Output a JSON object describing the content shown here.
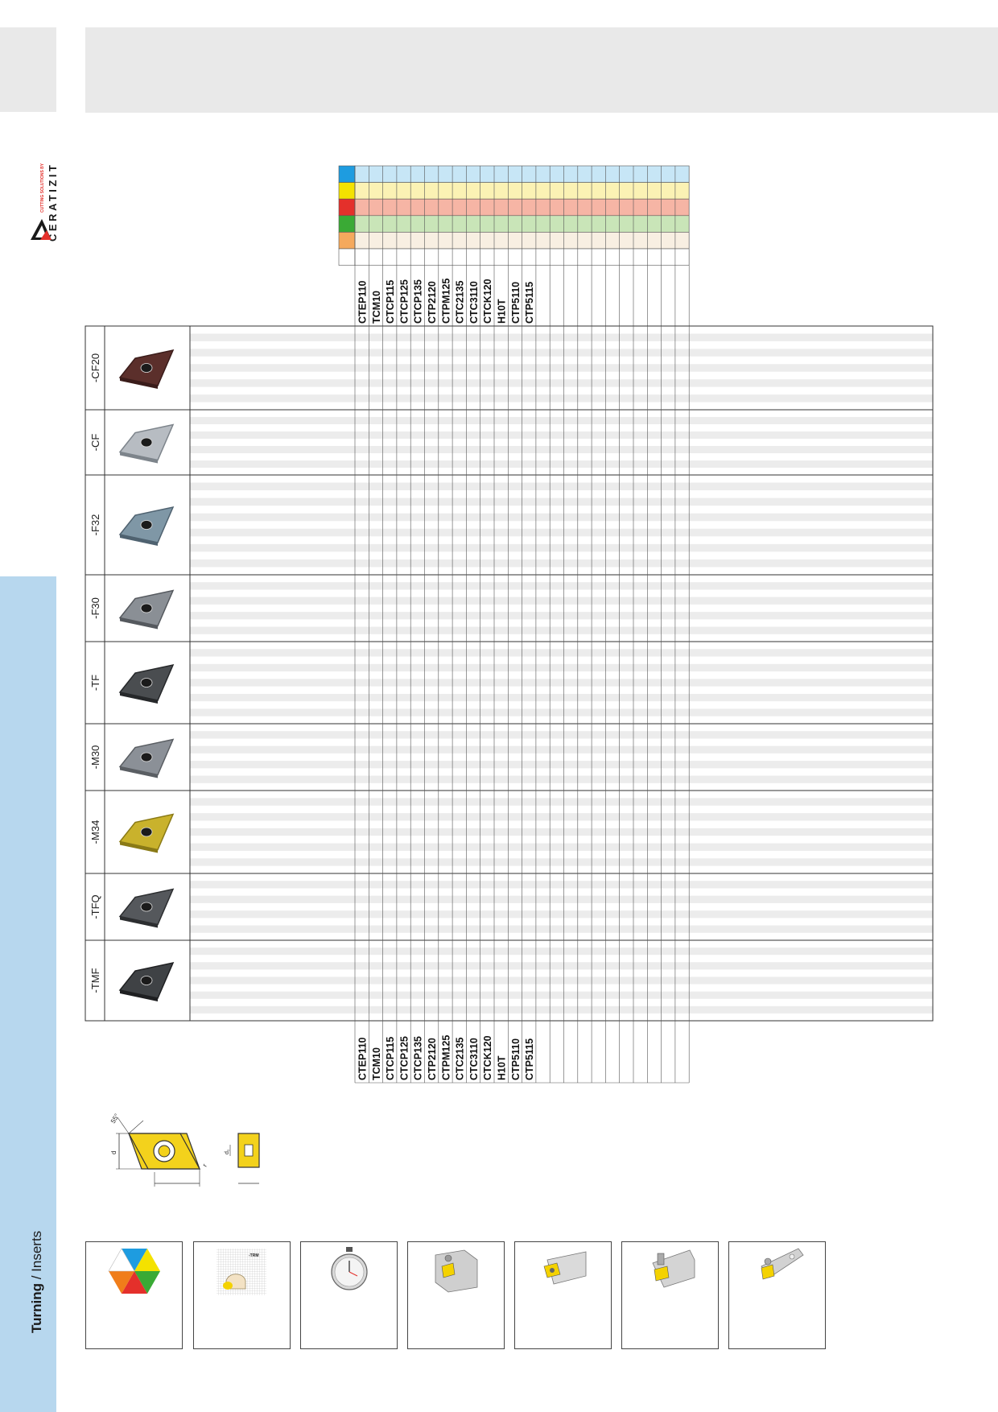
{
  "sidebar": {
    "section_bold": "Turning",
    "section_rest": " / Inserts"
  },
  "logo": {
    "brand": "CERATIZIT",
    "tagline": "CUTTING SOLUTIONS BY"
  },
  "colors": {
    "P": "#1e9ce0",
    "M": "#f4e200",
    "K": "#e4302b",
    "N": "#3aaa35",
    "S": "#f5a95d",
    "H": "#ffffff",
    "tint_P": "#c7e6f6",
    "tint_M": "#fbf2b4",
    "tint_K": "#f6b5a5",
    "tint_N": "#c9e5b8",
    "tint_S": "#f8efe2",
    "sidebar_blue": "#b7d7ee",
    "header_gray": "#e9e9e9",
    "stripe_gray": "#ececec"
  },
  "grades": [
    "CTEP110",
    "TCM10",
    "CTCP115",
    "CTCP125",
    "CTCP135",
    "CTP2120",
    "CTPM125",
    "CTC2135",
    "CTC3110",
    "CTCK120",
    "H10T",
    "CTP5110",
    "CTP5115"
  ],
  "total_grade_columns": 24,
  "geometries": [
    {
      "name": "-CF20",
      "icon": "insert-brown-icon",
      "stripes": 5
    },
    {
      "name": "-CF",
      "icon": "insert-silver-icon",
      "stripes": 4
    },
    {
      "name": "-F32",
      "icon": "insert-blue-grey-icon",
      "stripes": 6
    },
    {
      "name": "-F30",
      "icon": "insert-grey-chipbreaker-icon",
      "stripes": 4
    },
    {
      "name": "-TF",
      "icon": "insert-dark-icon",
      "stripes": 5
    },
    {
      "name": "-M30",
      "icon": "insert-grey-icon",
      "stripes": 4
    },
    {
      "name": "-M34",
      "icon": "insert-gold-icon",
      "stripes": 5
    },
    {
      "name": "-TFQ",
      "icon": "insert-dark-wiper-icon",
      "stripes": 4
    },
    {
      "name": "-TMF",
      "icon": "insert-black-icon",
      "stripes": 5
    }
  ],
  "drawing": {
    "angle_label": "55°",
    "d_label": "d",
    "d1_label": "d₁",
    "r_label": "r"
  },
  "legend_boxes": [
    {
      "icon": "material-hexagon-icon"
    },
    {
      "icon": "chip-breaker-chart-icon",
      "label": "-TRM"
    },
    {
      "icon": "stopwatch-icon"
    },
    {
      "icon": "toolholder-clamp-icon"
    },
    {
      "icon": "toolholder-lever-icon"
    },
    {
      "icon": "toolholder-screw-clamp-icon"
    },
    {
      "icon": "boring-bar-icon"
    }
  ]
}
